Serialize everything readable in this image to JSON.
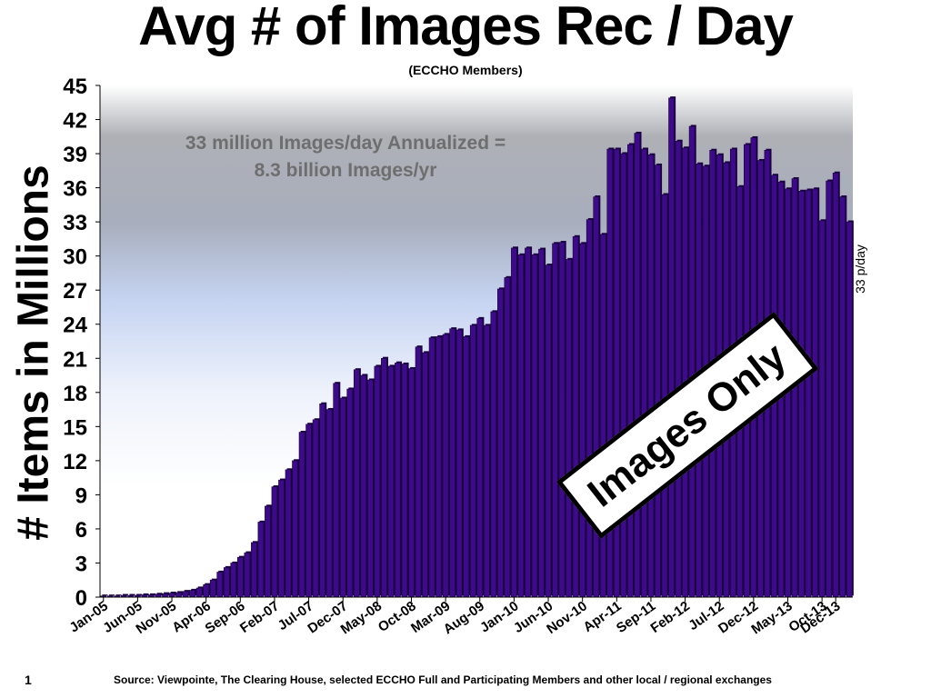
{
  "slide": {
    "title": "Avg # of Images Rec / Day",
    "subtitle": "(ECCHO Members)",
    "page_number": "1",
    "source": "Source: Viewpointe, The Clearing House, selected ECCHO Full and Participating Members and other local / regional exchanges"
  },
  "annotation": {
    "line1": "33 million Images/day Annualized =",
    "line2": "8.3 billion Images/yr"
  },
  "side_label": "33 p/day",
  "stamp": "Images Only",
  "colors": {
    "bar": "#3d0a8c",
    "bar_edge": "#150030",
    "bar_side": "#1c0045"
  },
  "chart_data": {
    "type": "bar",
    "ylabel": "# Items in Millions",
    "xlabel": "",
    "ylim": [
      0,
      45
    ],
    "ytick_step": 3,
    "grid": false,
    "x_tick_labels": [
      "Jan-05",
      "Jun-05",
      "Nov-05",
      "Apr-06",
      "Sep-06",
      "Feb-07",
      "Jul-07",
      "Dec-07",
      "May-08",
      "Oct-08",
      "Mar-09",
      "Aug-09",
      "Jan-10",
      "Jun-10",
      "Nov-10",
      "Apr-11",
      "Sep-11",
      "Feb-12",
      "Jul-12",
      "Dec-12",
      "May-13",
      "Oct-13",
      "Dec-13"
    ],
    "x_tick_indices": [
      0,
      5,
      10,
      15,
      20,
      25,
      30,
      35,
      40,
      45,
      50,
      55,
      60,
      65,
      70,
      75,
      80,
      85,
      90,
      95,
      100,
      105,
      107
    ],
    "values": [
      0.1,
      0.1,
      0.1,
      0.15,
      0.15,
      0.15,
      0.2,
      0.2,
      0.25,
      0.3,
      0.35,
      0.4,
      0.5,
      0.6,
      0.8,
      1.1,
      1.5,
      2.2,
      2.6,
      3.0,
      3.5,
      3.9,
      4.8,
      6.6,
      8.0,
      9.7,
      10.3,
      11.2,
      12.0,
      14.5,
      15.2,
      15.6,
      17.0,
      16.5,
      18.8,
      17.5,
      18.3,
      20.0,
      19.5,
      19.1,
      20.3,
      21.0,
      20.3,
      20.6,
      20.5,
      20.1,
      22.0,
      21.5,
      22.8,
      22.9,
      23.1,
      23.6,
      23.5,
      22.9,
      23.9,
      24.5,
      23.9,
      25.1,
      27.1,
      28.1,
      30.7,
      30.1,
      30.7,
      30.1,
      30.6,
      29.2,
      31.1,
      31.2,
      29.7,
      31.7,
      31.1,
      33.2,
      35.2,
      31.9,
      39.4,
      39.4,
      39.0,
      39.8,
      40.8,
      39.4,
      38.9,
      38.0,
      35.4,
      43.9,
      40.1,
      39.5,
      41.4,
      38.1,
      37.9,
      39.3,
      38.9,
      38.2,
      39.4,
      36.1,
      39.8,
      40.4,
      38.4,
      39.3,
      37.1,
      36.5,
      35.9,
      36.8,
      35.7,
      35.8,
      35.9,
      33.1,
      36.6,
      37.3,
      35.2,
      33.0
    ]
  }
}
